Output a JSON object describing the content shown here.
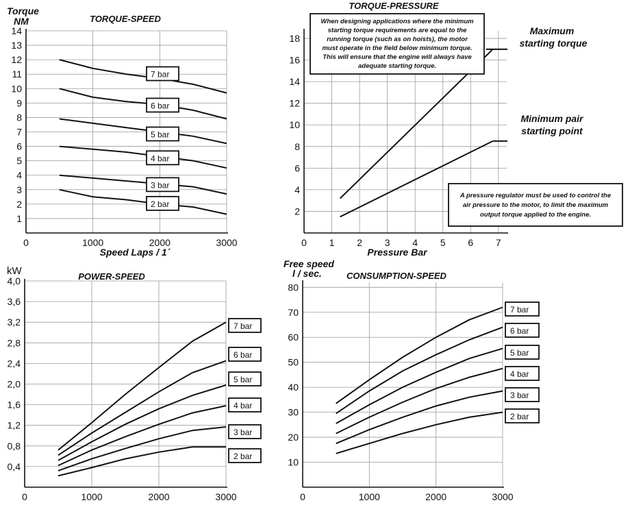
{
  "chart_data": [
    {
      "type": "line",
      "title": "TORQUE-SPEED",
      "ylabel": "Torque NM",
      "ylabel_lines": [
        "Torque",
        "NM"
      ],
      "xlabel": "Speed Laps / 1´",
      "xlim": [
        0,
        3000
      ],
      "ylim": [
        0,
        14
      ],
      "x_ticks": [
        "0",
        "1000",
        "2000",
        "3000"
      ],
      "y_ticks": [
        "1",
        "2",
        "3",
        "4",
        "5",
        "6",
        "7",
        "8",
        "9",
        "10",
        "11",
        "12",
        "13",
        "14"
      ],
      "series": [
        {
          "name": "7 bar",
          "x": [
            500,
            1000,
            1500,
            2000,
            2500,
            3000
          ],
          "y": [
            12.0,
            11.4,
            11.0,
            10.7,
            10.3,
            9.7
          ]
        },
        {
          "name": "6 bar",
          "x": [
            500,
            1000,
            1500,
            2000,
            2500,
            3000
          ],
          "y": [
            10.0,
            9.4,
            9.1,
            8.9,
            8.5,
            7.9
          ]
        },
        {
          "name": "5 bar",
          "x": [
            500,
            1000,
            1500,
            2000,
            2500,
            3000
          ],
          "y": [
            7.9,
            7.6,
            7.3,
            7.0,
            6.7,
            6.2
          ]
        },
        {
          "name": "4 bar",
          "x": [
            500,
            1000,
            1500,
            2000,
            2500,
            3000
          ],
          "y": [
            6.0,
            5.8,
            5.6,
            5.3,
            5.0,
            4.5
          ]
        },
        {
          "name": "3 bar",
          "x": [
            500,
            1000,
            1500,
            2000,
            2500,
            3000
          ],
          "y": [
            4.0,
            3.8,
            3.6,
            3.4,
            3.2,
            2.7
          ]
        },
        {
          "name": "2 bar",
          "x": [
            500,
            1000,
            1500,
            2000,
            2500,
            3000
          ],
          "y": [
            3.0,
            2.5,
            2.3,
            2.0,
            1.8,
            1.3
          ]
        }
      ]
    },
    {
      "type": "line",
      "title": "TORQUE-PRESSURE",
      "xlabel": "Pressure Bar",
      "xlim": [
        0,
        7
      ],
      "ylim": [
        0,
        18
      ],
      "x_ticks": [
        "0",
        "1",
        "2",
        "3",
        "4",
        "5",
        "6",
        "7"
      ],
      "y_ticks": [
        "2",
        "4",
        "6",
        "8",
        "10",
        "12",
        "14",
        "16",
        "18"
      ],
      "series": [
        {
          "name": "Maximum starting torque",
          "x": [
            1.3,
            6.8
          ],
          "y": [
            3.2,
            17.0
          ]
        },
        {
          "name": "Minimum pair starting point",
          "x": [
            1.3,
            6.8
          ],
          "y": [
            1.5,
            8.5
          ]
        }
      ],
      "annotations": {
        "max_label": [
          "Maximum",
          "starting torque"
        ],
        "min_label": [
          "Minimum pair",
          "starting point"
        ],
        "note_top": [
          "When designing applications where the minimum",
          "starting torque requirements are equal to the",
          "running torque (such as on hoists), the motor",
          "must operate in the field below minimum torque.",
          "This will ensure that the engine will always have",
          "adequate starting torque."
        ],
        "note_bottom": [
          "A pressure regulator must be used to control the",
          "air pressure to the motor, to limit the maximum",
          "output torque applied to the engine."
        ]
      }
    },
    {
      "type": "line",
      "title": "POWER-SPEED",
      "ylabel": "kW",
      "xlim": [
        0,
        3000
      ],
      "ylim": [
        0,
        4.0
      ],
      "x_ticks": [
        "0",
        "1000",
        "2000",
        "3000"
      ],
      "y_ticks": [
        "0,4",
        "0,8",
        "1,2",
        "1,6",
        "2,0",
        "2,4",
        "2,8",
        "3,2",
        "3,6",
        "4,0"
      ],
      "series": [
        {
          "name": "7 bar",
          "x": [
            500,
            1000,
            1500,
            2000,
            2500,
            3000
          ],
          "y": [
            0.72,
            1.25,
            1.8,
            2.32,
            2.83,
            3.2
          ]
        },
        {
          "name": "6 bar",
          "x": [
            500,
            1000,
            1500,
            2000,
            2500,
            3000
          ],
          "y": [
            0.62,
            1.05,
            1.45,
            1.85,
            2.22,
            2.45
          ]
        },
        {
          "name": "5 bar",
          "x": [
            500,
            1000,
            1500,
            2000,
            2500,
            3000
          ],
          "y": [
            0.52,
            0.88,
            1.22,
            1.52,
            1.78,
            1.98
          ]
        },
        {
          "name": "4 bar",
          "x": [
            500,
            1000,
            1500,
            2000,
            2500,
            3000
          ],
          "y": [
            0.42,
            0.72,
            0.98,
            1.22,
            1.44,
            1.58
          ]
        },
        {
          "name": "3 bar",
          "x": [
            500,
            1000,
            1500,
            2000,
            2500,
            3000
          ],
          "y": [
            0.32,
            0.55,
            0.75,
            0.94,
            1.1,
            1.17
          ]
        },
        {
          "name": "2 bar",
          "x": [
            500,
            1000,
            1500,
            2000,
            2500,
            3000
          ],
          "y": [
            0.22,
            0.38,
            0.55,
            0.68,
            0.78,
            0.78
          ]
        }
      ]
    },
    {
      "type": "line",
      "title": "CONSUMPTION-SPEED",
      "ylabel_lines": [
        "Free speed",
        "l / sec."
      ],
      "xlim": [
        0,
        3000
      ],
      "ylim": [
        0,
        80
      ],
      "x_ticks": [
        "0",
        "1000",
        "2000",
        "3000"
      ],
      "y_ticks": [
        "10",
        "20",
        "30",
        "40",
        "50",
        "60",
        "70",
        "80"
      ],
      "series": [
        {
          "name": "7 bar",
          "x": [
            500,
            1000,
            1500,
            2000,
            2500,
            3000
          ],
          "y": [
            33.5,
            43.0,
            52.0,
            60.0,
            67.0,
            72.0
          ]
        },
        {
          "name": "6 bar",
          "x": [
            500,
            1000,
            1500,
            2000,
            2500,
            3000
          ],
          "y": [
            29.5,
            38.5,
            46.5,
            53.0,
            59.0,
            64.0
          ]
        },
        {
          "name": "5 bar",
          "x": [
            500,
            1000,
            1500,
            2000,
            2500,
            3000
          ],
          "y": [
            25.5,
            33.0,
            40.0,
            46.0,
            51.5,
            55.5
          ]
        },
        {
          "name": "4 bar",
          "x": [
            500,
            1000,
            1500,
            2000,
            2500,
            3000
          ],
          "y": [
            21.5,
            28.0,
            34.0,
            39.5,
            44.0,
            47.5
          ]
        },
        {
          "name": "3 bar",
          "x": [
            500,
            1000,
            1500,
            2000,
            2500,
            3000
          ],
          "y": [
            17.5,
            23.0,
            28.0,
            32.5,
            36.0,
            38.5
          ]
        },
        {
          "name": "2 bar",
          "x": [
            500,
            1000,
            1500,
            2000,
            2500,
            3000
          ],
          "y": [
            13.5,
            17.5,
            21.5,
            25.0,
            28.0,
            30.0
          ]
        }
      ]
    }
  ]
}
